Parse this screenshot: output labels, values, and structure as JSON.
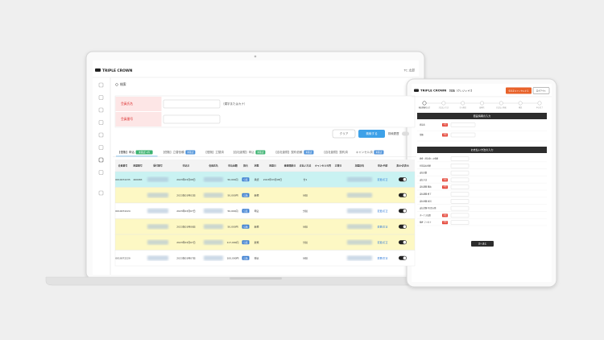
{
  "laptop": {
    "brand": "TRIPLE CROWN",
    "user": "TC 太郎",
    "search_title": "検索",
    "form": [
      {
        "label": "会員氏名",
        "hint": "（漢字またはカナ）"
      },
      {
        "label": "会員番号"
      }
    ],
    "buttons": {
      "clear": "クリア",
      "search": "検索する",
      "history": "検索履歴"
    },
    "tabs": [
      {
        "label": "【信販】申込",
        "badge": "未確認 1件",
        "badge_color": "#3cb371"
      },
      {
        "label": "【信販】立替依頼",
        "badge": "未確認",
        "badge_color": "#4a90d9"
      },
      {
        "label": "【信販】立替済"
      },
      {
        "label": "【自社割賦】申込",
        "badge": "未確認",
        "badge_color": "#3cb371"
      },
      {
        "label": "【自社割賦】契約依頼",
        "badge": "未確認",
        "badge_color": "#4a90d9"
      },
      {
        "label": "【自社割賦】契約済"
      },
      {
        "label": "キャンセル済",
        "badge": "未確認",
        "badge_color": "#4a90d9"
      }
    ],
    "columns": [
      "会員番号",
      "承認番号",
      "受付番号",
      "申込日",
      "会員氏名",
      "申込金額",
      "割合",
      "状態",
      "承認日",
      "審査開始日",
      "支払い方法",
      "キャンセル可否",
      "立替日",
      "加盟店名",
      "申込・手続",
      "表示・非表示"
    ],
    "rows": [
      {
        "color": "#c9f2f2",
        "cells": [
          "0010072235",
          "400083",
          null,
          "2023年03月08日",
          null,
          "50,000円",
          "信販",
          "承認",
          "2023年03月08日",
          null,
          "分1",
          null,
          null,
          null,
          "変更/訂正",
          null
        ]
      },
      {
        "color": "#fdf8c4",
        "cells": [
          null,
          null,
          null,
          "2023年03月02日",
          null,
          "50,000円",
          "信販",
          "新規",
          null,
          null,
          "分割",
          null,
          null,
          null,
          null,
          null
        ]
      },
      {
        "color": "#ffffff",
        "cells": [
          "0010072224",
          null,
          null,
          "2023年03月07日",
          null,
          "50,000円",
          "信販",
          "申込",
          null,
          null,
          "分割",
          null,
          null,
          null,
          "変更/訂正",
          null
        ]
      },
      {
        "color": "#fdf8c4",
        "cells": [
          null,
          null,
          null,
          "2023年03月08日",
          null,
          "50,000円",
          "信販",
          "新規",
          null,
          null,
          "分割",
          null,
          null,
          null,
          "変更/訂正",
          null
        ]
      },
      {
        "color": "#fdf8c4",
        "cells": [
          null,
          null,
          null,
          "2023年03月07日",
          null,
          "117,000円",
          "信販",
          "新規",
          null,
          null,
          "分割",
          null,
          null,
          null,
          "変更/訂正",
          null
        ]
      },
      {
        "color": "#ffffff",
        "cells": [
          "0010072229",
          null,
          null,
          "2023年03月07日",
          null,
          "100,000円",
          "信販",
          "申込",
          null,
          null,
          "分割",
          null,
          null,
          null,
          "変更/訂正",
          null
        ]
      }
    ]
  },
  "tablet": {
    "brand": "TRIPLE CROWN",
    "mode": "【信販（クレジット）】",
    "cancel": "申込をキャンセルする",
    "logout": "ログアウト",
    "steps": [
      "商品情報の入力",
      "お支払い方法",
      "本人確認",
      "勤務先",
      "お支払い情報",
      "確認",
      "申込完了"
    ],
    "required_label": "必須",
    "sections": [
      {
        "title": "商品情報の入力",
        "fields": [
          {
            "label": "商品名",
            "required": true
          },
          {
            "label": "金額",
            "required": true
          }
        ]
      },
      {
        "title": "お支払い方法の入力",
        "fields": [
          {
            "label": "頭金（申込金）の金額",
            "required": false
          },
          {
            "label": "分割支払金額",
            "required": false
          },
          {
            "label": "支払回数",
            "required": false
          },
          {
            "label": "支払方法",
            "required": true
          },
          {
            "label": "支払期間 開始",
            "required": true
          },
          {
            "label": "支払期間 終了",
            "required": false
          },
          {
            "label": "支払金額 初回",
            "required": false
          },
          {
            "label": "支払金額 2回目以降",
            "required": false
          },
          {
            "label": "ボーナス加算",
            "required": true
          },
          {
            "label": "備考 フリガナ",
            "required": true
          }
        ]
      }
    ],
    "next": "次へ進む"
  }
}
